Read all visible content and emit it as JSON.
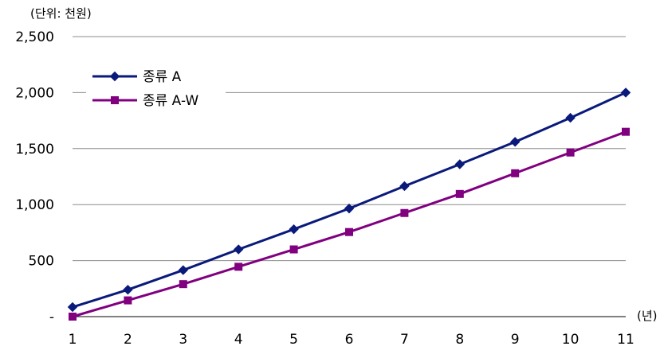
{
  "chart_data": {
    "type": "line",
    "unit_label": "(단위: 천원)",
    "x_unit_label": "(년)",
    "x": [
      1,
      2,
      3,
      4,
      5,
      6,
      7,
      8,
      9,
      10,
      11
    ],
    "x_tick_labels": [
      "1",
      "2",
      "3",
      "4",
      "5",
      "6",
      "7",
      "8",
      "9",
      "10",
      "11"
    ],
    "y_tick_values": [
      0,
      500,
      1000,
      1500,
      2000,
      2500
    ],
    "y_tick_labels": [
      "-",
      "500",
      "1,000",
      "1,500",
      "2,000",
      "2,500"
    ],
    "ylim": [
      0,
      2500
    ],
    "xlim": [
      1,
      11
    ],
    "grid": "horizontal",
    "legend_position": "top-left",
    "series": [
      {
        "name": "종류 A",
        "color": "#0a1a7a",
        "marker": "diamond",
        "values": [
          85,
          240,
          415,
          600,
          780,
          965,
          1165,
          1360,
          1560,
          1775,
          2000
        ]
      },
      {
        "name": "종류 A-W",
        "color": "#800080",
        "marker": "square",
        "values": [
          0,
          145,
          290,
          445,
          600,
          755,
          925,
          1095,
          1280,
          1465,
          1650
        ]
      }
    ]
  }
}
